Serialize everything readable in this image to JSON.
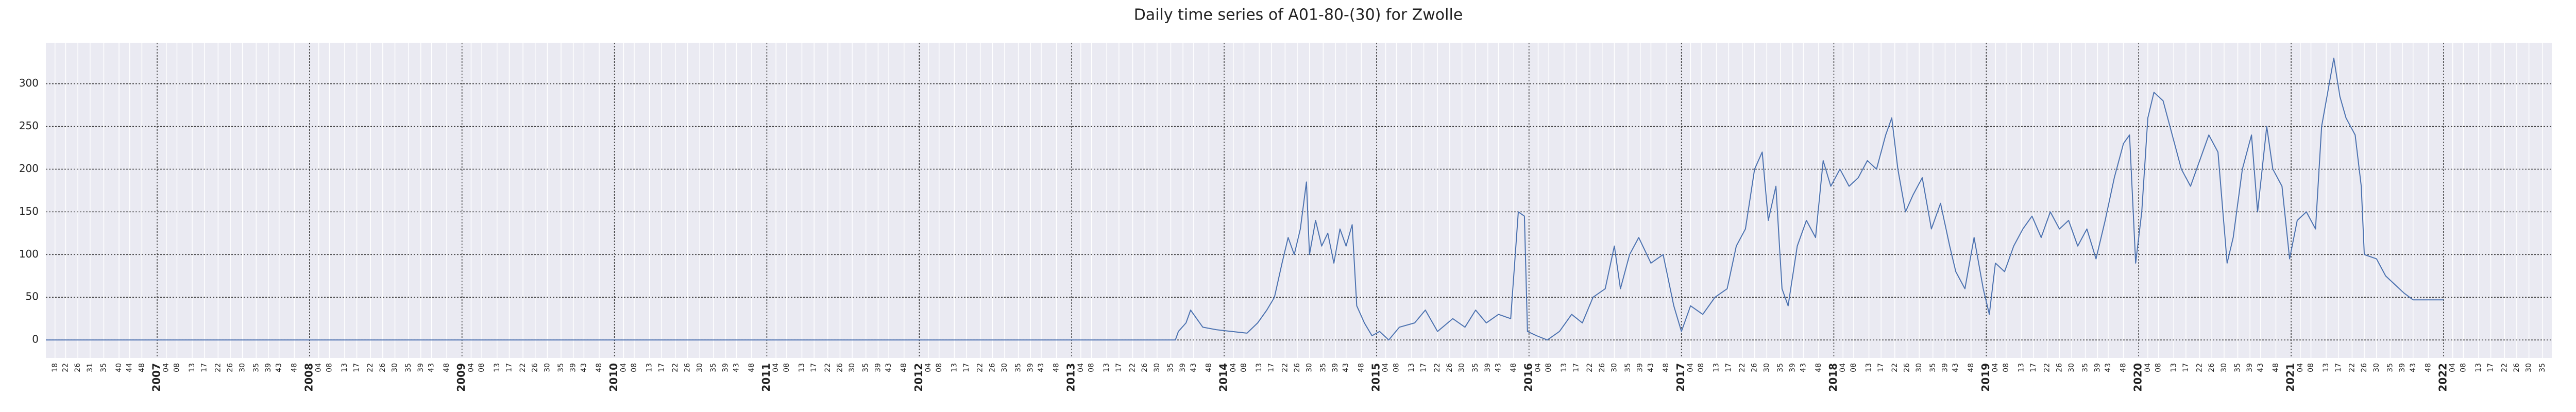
{
  "chart_data": {
    "type": "line",
    "title": "Daily time series of A01-80-(30) for Zwolle",
    "series": [
      {
        "color": "#4c72b0",
        "x": [
          2006.27,
          2013.68,
          2013.7,
          2013.75,
          2013.78,
          2013.82,
          2013.86,
          2013.95,
          2014.05,
          2014.15,
          2014.22,
          2014.28,
          2014.33,
          2014.38,
          2014.42,
          2014.46,
          2014.5,
          2014.54,
          2014.56,
          2014.6,
          2014.64,
          2014.68,
          2014.72,
          2014.76,
          2014.8,
          2014.84,
          2014.87,
          2014.92,
          2014.97,
          2015.02,
          2015.08,
          2015.15,
          2015.25,
          2015.32,
          2015.4,
          2015.5,
          2015.58,
          2015.65,
          2015.72,
          2015.8,
          2015.88,
          2015.93,
          2015.97,
          2015.99,
          2016.05,
          2016.12,
          2016.2,
          2016.28,
          2016.35,
          2016.42,
          2016.5,
          2016.56,
          2016.6,
          2016.66,
          2016.72,
          2016.8,
          2016.88,
          2016.95,
          2017.0,
          2017.06,
          2017.14,
          2017.22,
          2017.3,
          2017.36,
          2017.42,
          2017.48,
          2017.53,
          2017.57,
          2017.62,
          2017.66,
          2017.7,
          2017.76,
          2017.82,
          2017.88,
          2017.93,
          2017.98,
          2018.04,
          2018.1,
          2018.16,
          2018.22,
          2018.28,
          2018.34,
          2018.38,
          2018.42,
          2018.47,
          2018.52,
          2018.58,
          2018.64,
          2018.7,
          2018.76,
          2018.8,
          2018.86,
          2018.92,
          2018.98,
          2019.02,
          2019.06,
          2019.12,
          2019.18,
          2019.24,
          2019.3,
          2019.36,
          2019.42,
          2019.48,
          2019.54,
          2019.6,
          2019.66,
          2019.72,
          2019.78,
          2019.84,
          2019.9,
          2019.94,
          2019.98,
          2020.02,
          2020.06,
          2020.1,
          2020.16,
          2020.22,
          2020.28,
          2020.34,
          2020.4,
          2020.46,
          2020.52,
          2020.58,
          2020.62,
          2020.68,
          2020.74,
          2020.78,
          2020.84,
          2020.88,
          2020.94,
          2020.99,
          2021.04,
          2021.1,
          2021.16,
          2021.2,
          2021.24,
          2021.28,
          2021.32,
          2021.36,
          2021.42,
          2021.46,
          2021.48,
          2021.56,
          2021.62,
          2021.68,
          2021.74,
          2021.8,
          2022.0
        ],
        "values": [
          0,
          0,
          10,
          20,
          35,
          25,
          15,
          12,
          10,
          8,
          20,
          35,
          50,
          90,
          120,
          100,
          130,
          185,
          100,
          140,
          110,
          125,
          90,
          130,
          110,
          135,
          40,
          20,
          5,
          10,
          0,
          15,
          20,
          35,
          10,
          25,
          15,
          35,
          20,
          30,
          25,
          150,
          145,
          10,
          5,
          0,
          10,
          30,
          20,
          50,
          60,
          110,
          60,
          100,
          120,
          90,
          100,
          40,
          10,
          40,
          30,
          50,
          60,
          110,
          130,
          200,
          220,
          140,
          180,
          60,
          40,
          110,
          140,
          120,
          210,
          180,
          200,
          180,
          190,
          210,
          200,
          240,
          260,
          200,
          150,
          170,
          190,
          130,
          160,
          110,
          80,
          60,
          120,
          60,
          30,
          90,
          80,
          110,
          130,
          145,
          120,
          150,
          130,
          140,
          110,
          130,
          95,
          140,
          190,
          230,
          240,
          90,
          150,
          260,
          290,
          280,
          240,
          200,
          180,
          210,
          240,
          220,
          90,
          120,
          200,
          240,
          150,
          250,
          200,
          180,
          95,
          140,
          150,
          130,
          250,
          290,
          330,
          285,
          260,
          240,
          180,
          100,
          95,
          75,
          65,
          55,
          47,
          47
        ]
      }
    ],
    "xlim": [
      2006.27,
      2022.71
    ],
    "xticks": [
      2007,
      2008,
      2009,
      2010,
      2011,
      2012,
      2013,
      2014,
      2015,
      2016,
      2017,
      2018,
      2019,
      2020,
      2021,
      2022
    ],
    "xminorticks": [
      {
        "value": 2006.33,
        "label": "18"
      },
      {
        "value": 2006.4,
        "label": "22"
      },
      {
        "value": 2006.48,
        "label": "26"
      },
      {
        "value": 2006.56,
        "label": "31"
      },
      {
        "value": 2006.65,
        "label": "35"
      },
      {
        "value": 2006.75,
        "label": "40"
      },
      {
        "value": 2006.82,
        "label": "44"
      },
      {
        "value": 2006.9,
        "label": "48"
      },
      {
        "value": 2007.06,
        "label": "04"
      },
      {
        "value": 2007.13,
        "label": "08"
      },
      {
        "value": 2007.23,
        "label": "13"
      },
      {
        "value": 2007.31,
        "label": "17"
      },
      {
        "value": 2007.4,
        "label": "22"
      },
      {
        "value": 2007.48,
        "label": "26"
      },
      {
        "value": 2007.56,
        "label": "30"
      },
      {
        "value": 2007.65,
        "label": "35"
      },
      {
        "value": 2007.73,
        "label": "39"
      },
      {
        "value": 2007.8,
        "label": "43"
      },
      {
        "value": 2007.9,
        "label": "48"
      },
      {
        "value": 2008.06,
        "label": "04"
      },
      {
        "value": 2008.13,
        "label": "08"
      },
      {
        "value": 2008.23,
        "label": "13"
      },
      {
        "value": 2008.31,
        "label": "17"
      },
      {
        "value": 2008.4,
        "label": "22"
      },
      {
        "value": 2008.48,
        "label": "26"
      },
      {
        "value": 2008.56,
        "label": "30"
      },
      {
        "value": 2008.65,
        "label": "35"
      },
      {
        "value": 2008.73,
        "label": "39"
      },
      {
        "value": 2008.8,
        "label": "43"
      },
      {
        "value": 2008.9,
        "label": "48"
      },
      {
        "value": 2009.06,
        "label": "04"
      },
      {
        "value": 2009.13,
        "label": "08"
      },
      {
        "value": 2009.23,
        "label": "13"
      },
      {
        "value": 2009.31,
        "label": "17"
      },
      {
        "value": 2009.4,
        "label": "22"
      },
      {
        "value": 2009.48,
        "label": "26"
      },
      {
        "value": 2009.56,
        "label": "30"
      },
      {
        "value": 2009.65,
        "label": "35"
      },
      {
        "value": 2009.73,
        "label": "39"
      },
      {
        "value": 2009.8,
        "label": "43"
      },
      {
        "value": 2009.9,
        "label": "48"
      },
      {
        "value": 2010.06,
        "label": "04"
      },
      {
        "value": 2010.13,
        "label": "08"
      },
      {
        "value": 2010.23,
        "label": "13"
      },
      {
        "value": 2010.31,
        "label": "17"
      },
      {
        "value": 2010.4,
        "label": "22"
      },
      {
        "value": 2010.48,
        "label": "26"
      },
      {
        "value": 2010.56,
        "label": "30"
      },
      {
        "value": 2010.65,
        "label": "35"
      },
      {
        "value": 2010.73,
        "label": "39"
      },
      {
        "value": 2010.8,
        "label": "43"
      },
      {
        "value": 2010.9,
        "label": "48"
      },
      {
        "value": 2011.06,
        "label": "04"
      },
      {
        "value": 2011.13,
        "label": "08"
      },
      {
        "value": 2011.23,
        "label": "13"
      },
      {
        "value": 2011.31,
        "label": "17"
      },
      {
        "value": 2011.4,
        "label": "22"
      },
      {
        "value": 2011.48,
        "label": "26"
      },
      {
        "value": 2011.56,
        "label": "30"
      },
      {
        "value": 2011.65,
        "label": "35"
      },
      {
        "value": 2011.73,
        "label": "39"
      },
      {
        "value": 2011.8,
        "label": "43"
      },
      {
        "value": 2011.9,
        "label": "48"
      },
      {
        "value": 2012.06,
        "label": "04"
      },
      {
        "value": 2012.13,
        "label": "08"
      },
      {
        "value": 2012.23,
        "label": "13"
      },
      {
        "value": 2012.31,
        "label": "17"
      },
      {
        "value": 2012.4,
        "label": "22"
      },
      {
        "value": 2012.48,
        "label": "26"
      },
      {
        "value": 2012.56,
        "label": "30"
      },
      {
        "value": 2012.65,
        "label": "35"
      },
      {
        "value": 2012.73,
        "label": "39"
      },
      {
        "value": 2012.8,
        "label": "43"
      },
      {
        "value": 2012.9,
        "label": "48"
      },
      {
        "value": 2013.06,
        "label": "04"
      },
      {
        "value": 2013.13,
        "label": "08"
      },
      {
        "value": 2013.23,
        "label": "13"
      },
      {
        "value": 2013.31,
        "label": "17"
      },
      {
        "value": 2013.4,
        "label": "22"
      },
      {
        "value": 2013.48,
        "label": "26"
      },
      {
        "value": 2013.56,
        "label": "30"
      },
      {
        "value": 2013.65,
        "label": "35"
      },
      {
        "value": 2013.73,
        "label": "39"
      },
      {
        "value": 2013.8,
        "label": "43"
      },
      {
        "value": 2013.9,
        "label": "48"
      },
      {
        "value": 2014.06,
        "label": "04"
      },
      {
        "value": 2014.13,
        "label": "08"
      },
      {
        "value": 2014.23,
        "label": "13"
      },
      {
        "value": 2014.31,
        "label": "17"
      },
      {
        "value": 2014.4,
        "label": "22"
      },
      {
        "value": 2014.48,
        "label": "26"
      },
      {
        "value": 2014.56,
        "label": "30"
      },
      {
        "value": 2014.65,
        "label": "35"
      },
      {
        "value": 2014.73,
        "label": "39"
      },
      {
        "value": 2014.8,
        "label": "43"
      },
      {
        "value": 2014.9,
        "label": "48"
      },
      {
        "value": 2015.06,
        "label": "04"
      },
      {
        "value": 2015.13,
        "label": "08"
      },
      {
        "value": 2015.23,
        "label": "13"
      },
      {
        "value": 2015.31,
        "label": "17"
      },
      {
        "value": 2015.4,
        "label": "22"
      },
      {
        "value": 2015.48,
        "label": "26"
      },
      {
        "value": 2015.56,
        "label": "30"
      },
      {
        "value": 2015.65,
        "label": "35"
      },
      {
        "value": 2015.73,
        "label": "39"
      },
      {
        "value": 2015.8,
        "label": "43"
      },
      {
        "value": 2015.9,
        "label": "48"
      },
      {
        "value": 2016.06,
        "label": "04"
      },
      {
        "value": 2016.13,
        "label": "08"
      },
      {
        "value": 2016.23,
        "label": "13"
      },
      {
        "value": 2016.31,
        "label": "17"
      },
      {
        "value": 2016.4,
        "label": "22"
      },
      {
        "value": 2016.48,
        "label": "26"
      },
      {
        "value": 2016.56,
        "label": "30"
      },
      {
        "value": 2016.65,
        "label": "35"
      },
      {
        "value": 2016.73,
        "label": "39"
      },
      {
        "value": 2016.8,
        "label": "43"
      },
      {
        "value": 2016.9,
        "label": "48"
      },
      {
        "value": 2017.06,
        "label": "04"
      },
      {
        "value": 2017.13,
        "label": "08"
      },
      {
        "value": 2017.23,
        "label": "13"
      },
      {
        "value": 2017.31,
        "label": "17"
      },
      {
        "value": 2017.4,
        "label": "22"
      },
      {
        "value": 2017.48,
        "label": "26"
      },
      {
        "value": 2017.56,
        "label": "30"
      },
      {
        "value": 2017.65,
        "label": "35"
      },
      {
        "value": 2017.73,
        "label": "39"
      },
      {
        "value": 2017.8,
        "label": "43"
      },
      {
        "value": 2017.9,
        "label": "48"
      },
      {
        "value": 2018.06,
        "label": "04"
      },
      {
        "value": 2018.13,
        "label": "08"
      },
      {
        "value": 2018.23,
        "label": "13"
      },
      {
        "value": 2018.31,
        "label": "17"
      },
      {
        "value": 2018.4,
        "label": "22"
      },
      {
        "value": 2018.48,
        "label": "26"
      },
      {
        "value": 2018.56,
        "label": "30"
      },
      {
        "value": 2018.65,
        "label": "35"
      },
      {
        "value": 2018.73,
        "label": "39"
      },
      {
        "value": 2018.8,
        "label": "43"
      },
      {
        "value": 2018.9,
        "label": "48"
      },
      {
        "value": 2019.06,
        "label": "04"
      },
      {
        "value": 2019.13,
        "label": "08"
      },
      {
        "value": 2019.23,
        "label": "13"
      },
      {
        "value": 2019.31,
        "label": "17"
      },
      {
        "value": 2019.4,
        "label": "22"
      },
      {
        "value": 2019.48,
        "label": "26"
      },
      {
        "value": 2019.56,
        "label": "30"
      },
      {
        "value": 2019.65,
        "label": "35"
      },
      {
        "value": 2019.73,
        "label": "39"
      },
      {
        "value": 2019.8,
        "label": "43"
      },
      {
        "value": 2019.9,
        "label": "48"
      },
      {
        "value": 2020.06,
        "label": "04"
      },
      {
        "value": 2020.13,
        "label": "08"
      },
      {
        "value": 2020.23,
        "label": "13"
      },
      {
        "value": 2020.31,
        "label": "17"
      },
      {
        "value": 2020.4,
        "label": "22"
      },
      {
        "value": 2020.48,
        "label": "26"
      },
      {
        "value": 2020.56,
        "label": "30"
      },
      {
        "value": 2020.65,
        "label": "35"
      },
      {
        "value": 2020.73,
        "label": "39"
      },
      {
        "value": 2020.8,
        "label": "43"
      },
      {
        "value": 2020.9,
        "label": "48"
      },
      {
        "value": 2021.06,
        "label": "04"
      },
      {
        "value": 2021.13,
        "label": "08"
      },
      {
        "value": 2021.23,
        "label": "13"
      },
      {
        "value": 2021.31,
        "label": "17"
      },
      {
        "value": 2021.4,
        "label": "22"
      },
      {
        "value": 2021.48,
        "label": "26"
      },
      {
        "value": 2021.56,
        "label": "30"
      },
      {
        "value": 2021.65,
        "label": "35"
      },
      {
        "value": 2021.73,
        "label": "39"
      },
      {
        "value": 2021.8,
        "label": "43"
      },
      {
        "value": 2021.9,
        "label": "48"
      },
      {
        "value": 2022.06,
        "label": "04"
      },
      {
        "value": 2022.13,
        "label": "08"
      },
      {
        "value": 2022.23,
        "label": "13"
      },
      {
        "value": 2022.31,
        "label": "17"
      },
      {
        "value": 2022.4,
        "label": "22"
      },
      {
        "value": 2022.48,
        "label": "26"
      },
      {
        "value": 2022.56,
        "label": "30"
      },
      {
        "value": 2022.65,
        "label": "35"
      }
    ],
    "ylim": [
      -21,
      348
    ],
    "yticks": [
      0,
      50,
      100,
      150,
      200,
      250,
      300
    ],
    "grid": true
  }
}
